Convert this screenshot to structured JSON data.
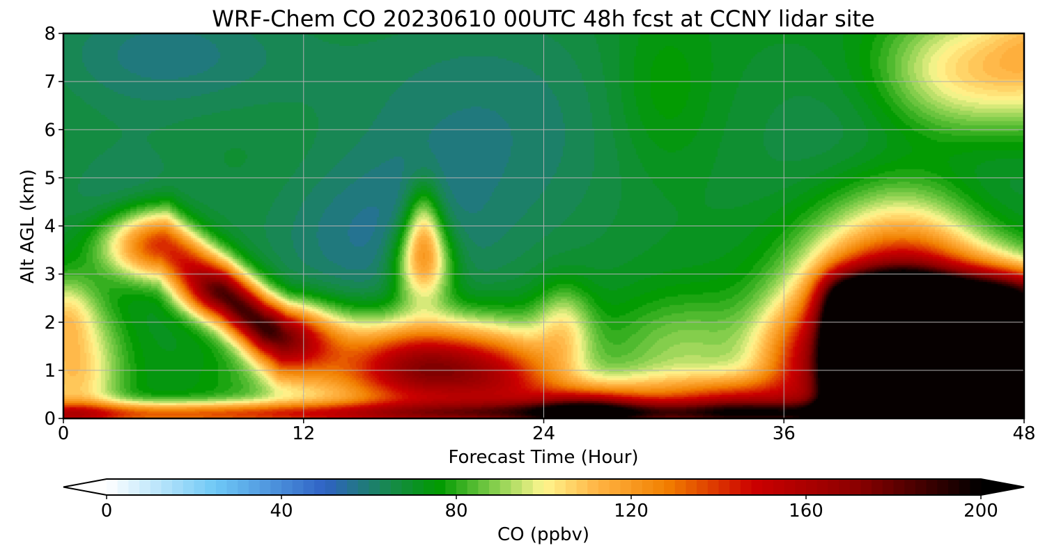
{
  "chart_data": {
    "type": "heatmap",
    "title": "WRF-Chem CO  20230610 00UTC 48h fcst at CCNY lidar site",
    "xlabel": "Forecast Time (Hour)",
    "ylabel": "Alt AGL (km)",
    "xlim": [
      0,
      48
    ],
    "ylim": [
      0,
      8
    ],
    "x_ticks": [
      0,
      12,
      24,
      36,
      48
    ],
    "x_tick_labels": [
      "0",
      "12",
      "24",
      "36",
      "48"
    ],
    "y_ticks": [
      0,
      1,
      2,
      3,
      4,
      5,
      6,
      7,
      8
    ],
    "y_tick_labels": [
      "0",
      "1",
      "2",
      "3",
      "4",
      "5",
      "6",
      "7",
      "8"
    ],
    "grid": true,
    "colorbar": {
      "label": "CO  (ppbv)",
      "range": [
        0,
        200
      ],
      "extend": "both",
      "ticks": [
        0,
        40,
        80,
        120,
        160,
        200
      ],
      "tick_labels": [
        "0",
        "40",
        "80",
        "120",
        "160",
        "200"
      ],
      "colormap_stops": [
        {
          "value": 0,
          "color": "#ffffff"
        },
        {
          "value": 25,
          "color": "#6ec8f6"
        },
        {
          "value": 50,
          "color": "#2f62c4"
        },
        {
          "value": 65,
          "color": "#168a4a"
        },
        {
          "value": 76,
          "color": "#009a00"
        },
        {
          "value": 88,
          "color": "#7ccb48"
        },
        {
          "value": 100,
          "color": "#fff68f"
        },
        {
          "value": 112,
          "color": "#ffb545"
        },
        {
          "value": 128,
          "color": "#f28000"
        },
        {
          "value": 148,
          "color": "#cc0000"
        },
        {
          "value": 172,
          "color": "#8a0000"
        },
        {
          "value": 200,
          "color": "#000000"
        }
      ]
    },
    "background_field_ppbv": 72,
    "features_ppbv": [
      {
        "x": 5,
        "y": 7.6,
        "sx": 5,
        "sy": 1.0,
        "amp": -13
      },
      {
        "x": 3,
        "y": 4.2,
        "sx": 3,
        "sy": 1.2,
        "amp": -11
      },
      {
        "x": 21,
        "y": 6.0,
        "sx": 6,
        "sy": 2.2,
        "amp": -12
      },
      {
        "x": 15,
        "y": 3.6,
        "sx": 4,
        "sy": 1.2,
        "amp": -11
      },
      {
        "x": 40,
        "y": 5.4,
        "sx": 4,
        "sy": 1.6,
        "amp": -10
      },
      {
        "x": 46,
        "y": 4.2,
        "sx": 2.5,
        "sy": 1.2,
        "amp": -9
      },
      {
        "x": 30,
        "y": 6.8,
        "sx": 1.8,
        "sy": 1.2,
        "amp": 8
      },
      {
        "x": 45,
        "y": 7.2,
        "sx": 3,
        "sy": 0.9,
        "amp": 34
      },
      {
        "x": 49,
        "y": 7.8,
        "sx": 2,
        "sy": 1.0,
        "amp": 28
      },
      {
        "x": 18,
        "y": 3.2,
        "sx": 1.0,
        "sy": 0.6,
        "amp": 47
      },
      {
        "x": 18,
        "y": 4.0,
        "sx": 0.6,
        "sy": 0.6,
        "amp": 28
      },
      {
        "x": 0.5,
        "y": 1.0,
        "sx": 1.6,
        "sy": 1.1,
        "amp": 38
      },
      {
        "x": 0.0,
        "y": 2.2,
        "sx": 1.0,
        "sy": 0.5,
        "amp": 18
      },
      {
        "x": 12,
        "y": 0.7,
        "sx": 3,
        "sy": 0.7,
        "amp": 14
      },
      {
        "x": 19,
        "y": 0.9,
        "sx": 3.5,
        "sy": 0.7,
        "amp": 65
      },
      {
        "x": 17.5,
        "y": 1.2,
        "sx": 2.6,
        "sy": 0.6,
        "amp": 40
      },
      {
        "x": 22.5,
        "y": 0.8,
        "sx": 2.0,
        "sy": 0.7,
        "amp": 30
      },
      {
        "x": 26,
        "y": 0.15,
        "sx": 2.0,
        "sy": 0.3,
        "amp": 60
      },
      {
        "x": 25,
        "y": 1.9,
        "sx": 1.0,
        "sy": 0.6,
        "amp": 25
      },
      {
        "x": 30,
        "y": 0.3,
        "sx": 4,
        "sy": 0.4,
        "amp": 45
      },
      {
        "x": 31,
        "y": 1.4,
        "sx": 2.6,
        "sy": 0.8,
        "amp": 18
      },
      {
        "x": 34,
        "y": 0.25,
        "sx": 2.0,
        "sy": 0.4,
        "amp": 38
      },
      {
        "x": 36.5,
        "y": 1.2,
        "sx": 1.5,
        "sy": 0.8,
        "amp": 35
      },
      {
        "x": 42,
        "y": 1.5,
        "sx": 3.2,
        "sy": 1.7,
        "amp": 150
      },
      {
        "x": 47,
        "y": 2.5,
        "sx": 1.5,
        "sy": 0.6,
        "amp": 22
      }
    ],
    "plumes_ppbv": [
      {
        "x0": 5,
        "y0": 3.6,
        "x1": 11,
        "y1": 1.6,
        "width": 0.5,
        "amp": 78
      },
      {
        "x0": 0,
        "y0": 0.08,
        "x1": 48,
        "y1": 0.08,
        "width": 0.18,
        "amp": 60
      },
      {
        "x0": 8,
        "y0": 2.6,
        "x1": 10,
        "y1": 1.9,
        "width": 0.35,
        "amp": 38
      }
    ],
    "surface_layer_ppbv": [
      {
        "x0": 38,
        "x1": 48,
        "h": 2.9,
        "amp": 110
      }
    ]
  }
}
